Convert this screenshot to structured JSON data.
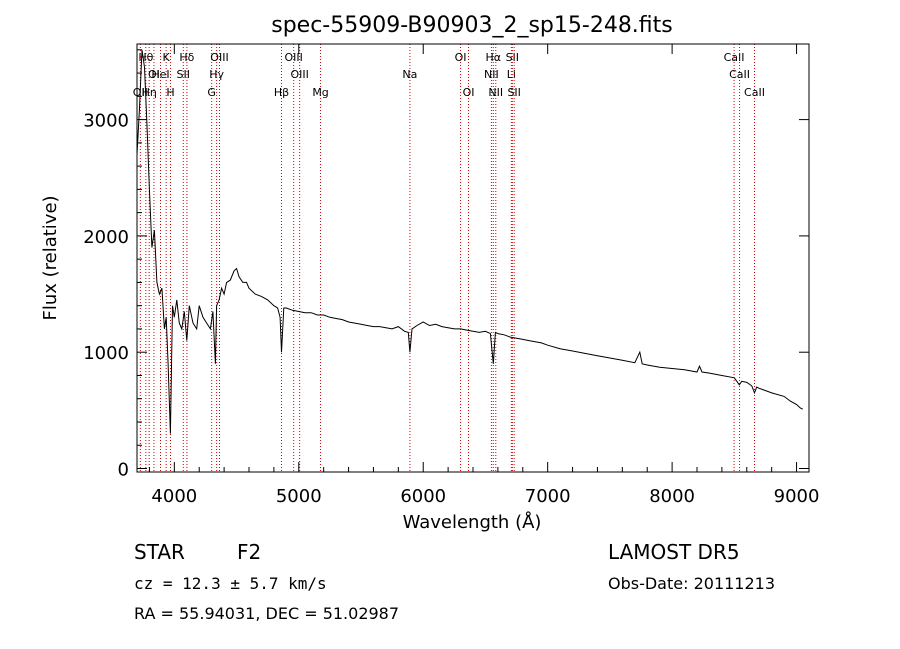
{
  "chart_data": {
    "type": "line",
    "title": "spec-55909-B90903_2_sp15-248.fits",
    "xlabel": "Wavelength (Å)",
    "ylabel": "Flux (relative)",
    "xlim": [
      3700,
      9100
    ],
    "ylim": [
      -30,
      3650
    ],
    "xticks": [
      4000,
      5000,
      6000,
      7000,
      8000,
      9000
    ],
    "yticks": [
      0,
      1000,
      2000,
      3000
    ],
    "grid": false,
    "series": [
      {
        "color": "#000000",
        "x": [
          3700,
          3720,
          3740,
          3760,
          3780,
          3800,
          3820,
          3840,
          3860,
          3880,
          3900,
          3920,
          3935,
          3950,
          3968,
          3985,
          4000,
          4020,
          4040,
          4060,
          4080,
          4100,
          4120,
          4150,
          4180,
          4200,
          4230,
          4260,
          4290,
          4310,
          4330,
          4340,
          4360,
          4380,
          4400,
          4420,
          4450,
          4480,
          4500,
          4520,
          4550,
          4580,
          4600,
          4650,
          4700,
          4750,
          4800,
          4830,
          4850,
          4861,
          4880,
          4900,
          4950,
          5000,
          5050,
          5100,
          5150,
          5200,
          5250,
          5300,
          5350,
          5400,
          5450,
          5500,
          5550,
          5600,
          5650,
          5700,
          5750,
          5800,
          5850,
          5880,
          5893,
          5910,
          5950,
          6000,
          6050,
          6100,
          6150,
          6200,
          6250,
          6300,
          6350,
          6400,
          6450,
          6500,
          6540,
          6563,
          6580,
          6600,
          6650,
          6700,
          6750,
          6800,
          6850,
          6900,
          6950,
          7000,
          7100,
          7200,
          7300,
          7400,
          7500,
          7600,
          7700,
          7740,
          7760,
          7800,
          7900,
          8000,
          8100,
          8200,
          8220,
          8240,
          8300,
          8400,
          8500,
          8540,
          8560,
          8600,
          8640,
          8662,
          8680,
          8700,
          8800,
          8900,
          8950,
          9000,
          9030,
          9050
        ],
        "y": [
          2700,
          3100,
          3600,
          3450,
          2950,
          2400,
          1900,
          2050,
          1600,
          1500,
          1550,
          1200,
          1300,
          900,
          300,
          1400,
          1300,
          1450,
          1250,
          1200,
          1350,
          1100,
          1400,
          1250,
          1200,
          1400,
          1300,
          1250,
          1200,
          1350,
          900,
          1400,
          1450,
          1550,
          1500,
          1600,
          1620,
          1700,
          1720,
          1650,
          1600,
          1600,
          1550,
          1500,
          1480,
          1450,
          1400,
          1380,
          1300,
          1000,
          1380,
          1380,
          1360,
          1350,
          1340,
          1340,
          1320,
          1320,
          1300,
          1290,
          1280,
          1260,
          1250,
          1240,
          1230,
          1220,
          1220,
          1210,
          1200,
          1220,
          1180,
          1170,
          1000,
          1200,
          1230,
          1260,
          1230,
          1240,
          1220,
          1210,
          1200,
          1200,
          1190,
          1180,
          1170,
          1180,
          1160,
          900,
          1170,
          1160,
          1150,
          1130,
          1120,
          1110,
          1100,
          1090,
          1080,
          1060,
          1030,
          1010,
          990,
          970,
          950,
          930,
          910,
          1000,
          900,
          890,
          870,
          860,
          850,
          830,
          880,
          830,
          820,
          800,
          780,
          720,
          750,
          740,
          710,
          650,
          700,
          690,
          650,
          620,
          580,
          550,
          520,
          510
        ]
      }
    ],
    "line_markers": [
      {
        "x": 3771,
        "label": "Hθ",
        "row": 1
      },
      {
        "x": 3798,
        "label": "Hη",
        "row": 3
      },
      {
        "x": 3727,
        "label": "OII",
        "row": 3
      },
      {
        "x": 3836,
        "label": "OI",
        "row": 2
      },
      {
        "x": 3889,
        "label": "HeI",
        "row": 2
      },
      {
        "x": 3934,
        "label": "K",
        "row": 1
      },
      {
        "x": 3969,
        "label": "H",
        "row": 3
      },
      {
        "x": 4101,
        "label": "Hδ",
        "row": 1
      },
      {
        "x": 4072,
        "label": "SII",
        "row": 2
      },
      {
        "x": 4300,
        "label": "G",
        "row": 3
      },
      {
        "x": 4340,
        "label": "Hγ",
        "row": 2
      },
      {
        "x": 4363,
        "label": "OIII",
        "row": 1
      },
      {
        "x": 4861,
        "label": "Hβ",
        "row": 3
      },
      {
        "x": 4959,
        "label": "OIII",
        "row": 1
      },
      {
        "x": 5007,
        "label": "OIII",
        "row": 2
      },
      {
        "x": 5175,
        "label": "Mg",
        "row": 3
      },
      {
        "x": 5893,
        "label": "Na",
        "row": 2
      },
      {
        "x": 6300,
        "label": "OI",
        "row": 1
      },
      {
        "x": 6364,
        "label": "OI",
        "row": 3
      },
      {
        "x": 6548,
        "label": "NII",
        "row": 2
      },
      {
        "x": 6563,
        "label": "Hα",
        "row": 1
      },
      {
        "x": 6583,
        "label": "NII",
        "row": 3
      },
      {
        "x": 6708,
        "label": "Li",
        "row": 2
      },
      {
        "x": 6716,
        "label": "SII",
        "row": 1
      },
      {
        "x": 6731,
        "label": "SII",
        "row": 3
      },
      {
        "x": 8498,
        "label": "CaII",
        "row": 1
      },
      {
        "x": 8542,
        "label": "CaII",
        "row": 2
      },
      {
        "x": 8662,
        "label": "CaII",
        "row": 3
      }
    ],
    "marker_color": "#cc0000"
  },
  "info": {
    "object_class": "STAR",
    "subclass": "F2",
    "survey": "LAMOST DR5",
    "redshift": "cz = 12.3 ± 5.7 km/s",
    "obs_date": "Obs-Date: 20111213",
    "coords": "RA =  55.94031, DEC =  51.02987"
  }
}
